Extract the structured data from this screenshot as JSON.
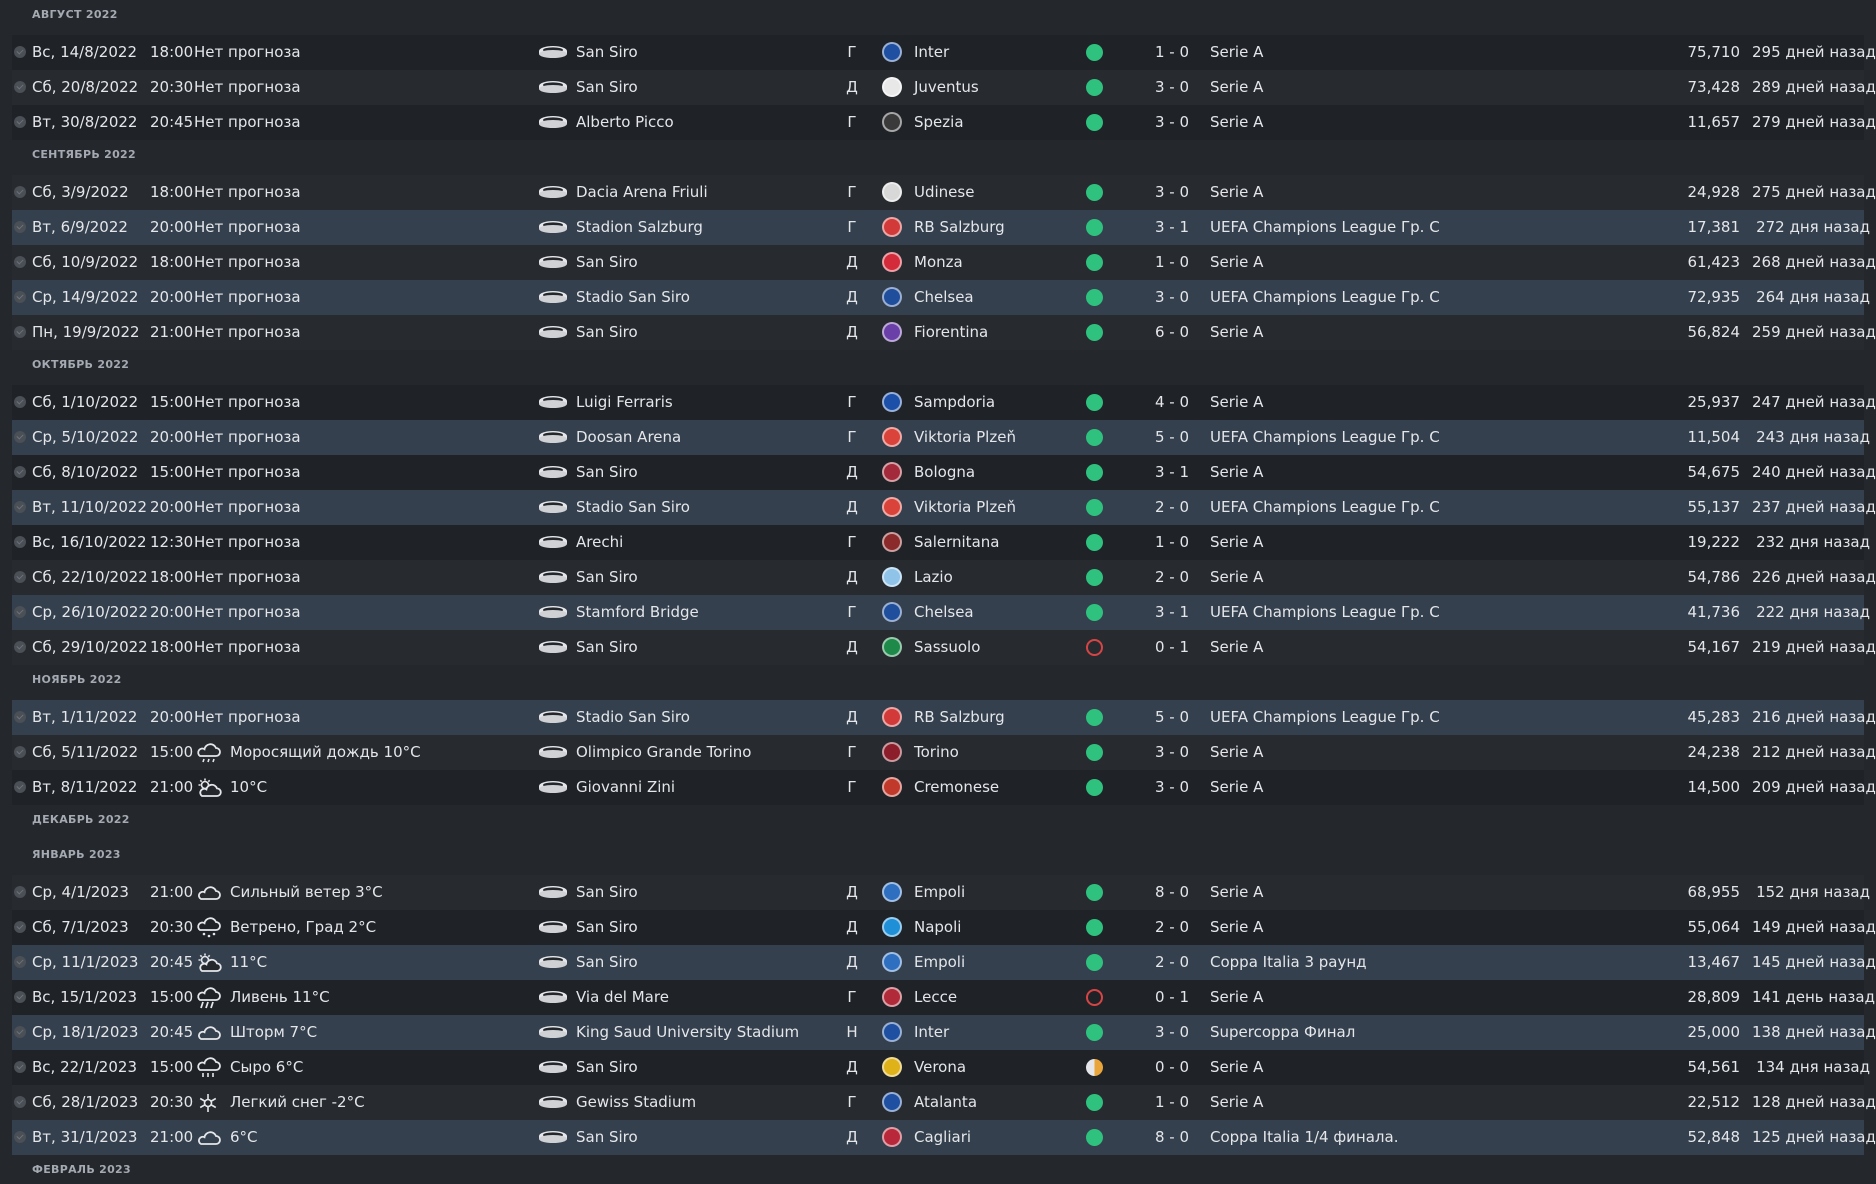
{
  "colors": {
    "win": "#2ec27e",
    "loss": "#d64545",
    "draw": "#e9a43a",
    "accent": "#34404d"
  },
  "months": [
    {
      "label": "АВГУСТ 2022",
      "matches": [
        {
          "date": "Вс, 14/8/2022",
          "time": "18:00",
          "weather_icon": "",
          "forecast": "Нет прогноза",
          "stadium": "San Siro",
          "venue": "Г",
          "team": "Inter",
          "crest_color": "#1e4fa0",
          "result": "win",
          "score": "1 - 0",
          "competition": "Serie A",
          "attendance": "75,710",
          "ago": "295 дней назад",
          "euro": false
        },
        {
          "date": "Сб, 20/8/2022",
          "time": "20:30",
          "weather_icon": "",
          "forecast": "Нет прогноза",
          "stadium": "San Siro",
          "venue": "Д",
          "team": "Juventus",
          "crest_color": "#e8e8e8",
          "result": "win",
          "score": "3 - 0",
          "competition": "Serie A",
          "attendance": "73,428",
          "ago": "289 дней назад",
          "euro": false
        },
        {
          "date": "Вт, 30/8/2022",
          "time": "20:45",
          "weather_icon": "",
          "forecast": "Нет прогноза",
          "stadium": "Alberto Picco",
          "venue": "Г",
          "team": "Spezia",
          "crest_color": "#3a3a3a",
          "result": "win",
          "score": "3 - 0",
          "competition": "Serie A",
          "attendance": "11,657",
          "ago": "279 дней назад",
          "euro": false
        }
      ]
    },
    {
      "label": "СЕНТЯБРЬ 2022",
      "matches": [
        {
          "date": "Сб, 3/9/2022",
          "time": "18:00",
          "weather_icon": "",
          "forecast": "Нет прогноза",
          "stadium": "Dacia Arena Friuli",
          "venue": "Г",
          "team": "Udinese",
          "crest_color": "#d8d8d8",
          "result": "win",
          "score": "3 - 0",
          "competition": "Serie A",
          "attendance": "24,928",
          "ago": "275 дней назад",
          "euro": false
        },
        {
          "date": "Вт, 6/9/2022",
          "time": "20:00",
          "weather_icon": "",
          "forecast": "Нет прогноза",
          "stadium": "Stadion Salzburg",
          "venue": "Г",
          "team": "RB Salzburg",
          "crest_color": "#d23a3a",
          "result": "win",
          "score": "3 - 1",
          "competition": "UEFA Champions League Гр. C",
          "attendance": "17,381",
          "ago": "272 дня назад",
          "euro": true
        },
        {
          "date": "Сб, 10/9/2022",
          "time": "18:00",
          "weather_icon": "",
          "forecast": "Нет прогноза",
          "stadium": "San Siro",
          "venue": "Д",
          "team": "Monza",
          "crest_color": "#d42b3a",
          "result": "win",
          "score": "1 - 0",
          "competition": "Serie A",
          "attendance": "61,423",
          "ago": "268 дней назад",
          "euro": false
        },
        {
          "date": "Ср, 14/9/2022",
          "time": "20:00",
          "weather_icon": "",
          "forecast": "Нет прогноза",
          "stadium": "Stadio San Siro",
          "venue": "Д",
          "team": "Chelsea",
          "crest_color": "#1f4e9c",
          "result": "win",
          "score": "3 - 0",
          "competition": "UEFA Champions League Гр. C",
          "attendance": "72,935",
          "ago": "264 дня назад",
          "euro": true
        },
        {
          "date": "Пн, 19/9/2022",
          "time": "21:00",
          "weather_icon": "",
          "forecast": "Нет прогноза",
          "stadium": "San Siro",
          "venue": "Д",
          "team": "Fiorentina",
          "crest_color": "#6b3fa8",
          "result": "win",
          "score": "6 - 0",
          "competition": "Serie A",
          "attendance": "56,824",
          "ago": "259 дней назад",
          "euro": false
        }
      ]
    },
    {
      "label": "ОКТЯБРЬ 2022",
      "matches": [
        {
          "date": "Сб, 1/10/2022",
          "time": "15:00",
          "weather_icon": "",
          "forecast": "Нет прогноза",
          "stadium": "Luigi Ferraris",
          "venue": "Г",
          "team": "Sampdoria",
          "crest_color": "#1b4fa8",
          "result": "win",
          "score": "4 - 0",
          "competition": "Serie A",
          "attendance": "25,937",
          "ago": "247 дней назад",
          "euro": false
        },
        {
          "date": "Ср, 5/10/2022",
          "time": "20:00",
          "weather_icon": "",
          "forecast": "Нет прогноза",
          "stadium": "Doosan Arena",
          "venue": "Г",
          "team": "Viktoria Plzeň",
          "crest_color": "#d9433a",
          "result": "win",
          "score": "5 - 0",
          "competition": "UEFA Champions League Гр. C",
          "attendance": "11,504",
          "ago": "243 дня назад",
          "euro": true
        },
        {
          "date": "Сб, 8/10/2022",
          "time": "15:00",
          "weather_icon": "",
          "forecast": "Нет прогноза",
          "stadium": "San Siro",
          "venue": "Д",
          "team": "Bologna",
          "crest_color": "#a32a3a",
          "result": "win",
          "score": "3 - 1",
          "competition": "Serie A",
          "attendance": "54,675",
          "ago": "240 дней назад",
          "euro": false
        },
        {
          "date": "Вт, 11/10/2022",
          "time": "20:00",
          "weather_icon": "",
          "forecast": "Нет прогноза",
          "stadium": "Stadio San Siro",
          "venue": "Д",
          "team": "Viktoria Plzeň",
          "crest_color": "#d9433a",
          "result": "win",
          "score": "2 - 0",
          "competition": "UEFA Champions League Гр. C",
          "attendance": "55,137",
          "ago": "237 дней назад",
          "euro": true
        },
        {
          "date": "Вс, 16/10/2022",
          "time": "12:30",
          "weather_icon": "",
          "forecast": "Нет прогноза",
          "stadium": "Arechi",
          "venue": "Г",
          "team": "Salernitana",
          "crest_color": "#8b2a2a",
          "result": "win",
          "score": "1 - 0",
          "competition": "Serie A",
          "attendance": "19,222",
          "ago": "232 дня назад",
          "euro": false
        },
        {
          "date": "Сб, 22/10/2022",
          "time": "18:00",
          "weather_icon": "",
          "forecast": "Нет прогноза",
          "stadium": "San Siro",
          "venue": "Д",
          "team": "Lazio",
          "crest_color": "#8fc3e8",
          "result": "win",
          "score": "2 - 0",
          "competition": "Serie A",
          "attendance": "54,786",
          "ago": "226 дней назад",
          "euro": false
        },
        {
          "date": "Ср, 26/10/2022",
          "time": "20:00",
          "weather_icon": "",
          "forecast": "Нет прогноза",
          "stadium": "Stamford Bridge",
          "venue": "Г",
          "team": "Chelsea",
          "crest_color": "#1f4e9c",
          "result": "win",
          "score": "3 - 1",
          "competition": "UEFA Champions League Гр. C",
          "attendance": "41,736",
          "ago": "222 дня назад",
          "euro": true
        },
        {
          "date": "Сб, 29/10/2022",
          "time": "18:00",
          "weather_icon": "",
          "forecast": "Нет прогноза",
          "stadium": "San Siro",
          "venue": "Д",
          "team": "Sassuolo",
          "crest_color": "#1e8a4a",
          "result": "loss",
          "score": "0 - 1",
          "competition": "Serie A",
          "attendance": "54,167",
          "ago": "219 дней назад",
          "euro": false
        }
      ]
    },
    {
      "label": "НОЯБРЬ 2022",
      "matches": [
        {
          "date": "Вт, 1/11/2022",
          "time": "20:00",
          "weather_icon": "",
          "forecast": "Нет прогноза",
          "stadium": "Stadio San Siro",
          "venue": "Д",
          "team": "RB Salzburg",
          "crest_color": "#d23a3a",
          "result": "win",
          "score": "5 - 0",
          "competition": "UEFA Champions League Гр. C",
          "attendance": "45,283",
          "ago": "216 дней назад",
          "euro": true
        },
        {
          "date": "Сб, 5/11/2022",
          "time": "15:00",
          "weather_icon": "drizzle-icon",
          "forecast": "Моросящий дождь 10°C",
          "stadium": "Olimpico Grande Torino",
          "venue": "Г",
          "team": "Torino",
          "crest_color": "#8b1e2a",
          "result": "win",
          "score": "3 - 0",
          "competition": "Serie A",
          "attendance": "24,238",
          "ago": "212 дней назад",
          "euro": false
        },
        {
          "date": "Вт, 8/11/2022",
          "time": "21:00",
          "weather_icon": "partly-cloudy-icon",
          "forecast": "10°C",
          "stadium": "Giovanni Zini",
          "venue": "Г",
          "team": "Cremonese",
          "crest_color": "#c0392b",
          "result": "win",
          "score": "3 - 0",
          "competition": "Serie A",
          "attendance": "14,500",
          "ago": "209 дней назад",
          "euro": false
        }
      ]
    },
    {
      "label": "ДЕКАБРЬ 2022",
      "matches": []
    },
    {
      "label": "ЯНВАРЬ 2023",
      "matches": [
        {
          "date": "Ср, 4/1/2023",
          "time": "21:00",
          "weather_icon": "cloud-icon",
          "forecast": "Сильный ветер 3°C",
          "stadium": "San Siro",
          "venue": "Д",
          "team": "Empoli",
          "crest_color": "#2f6fc0",
          "result": "win",
          "score": "8 - 0",
          "competition": "Serie A",
          "attendance": "68,955",
          "ago": "152 дня назад",
          "euro": false
        },
        {
          "date": "Сб, 7/1/2023",
          "time": "20:30",
          "weather_icon": "hail-icon",
          "forecast": "Ветрено, Град 2°C",
          "stadium": "San Siro",
          "venue": "Д",
          "team": "Napoli",
          "crest_color": "#1f8fd8",
          "result": "win",
          "score": "2 - 0",
          "competition": "Serie A",
          "attendance": "55,064",
          "ago": "149 дней назад",
          "euro": false
        },
        {
          "date": "Ср, 11/1/2023",
          "time": "20:45",
          "weather_icon": "partly-cloudy-icon",
          "forecast": "11°C",
          "stadium": "San Siro",
          "venue": "Д",
          "team": "Empoli",
          "crest_color": "#2f6fc0",
          "result": "win",
          "score": "2 - 0",
          "competition": "Coppa Italia 3 раунд",
          "attendance": "13,467",
          "ago": "145 дней назад",
          "euro": true
        },
        {
          "date": "Вс, 15/1/2023",
          "time": "15:00",
          "weather_icon": "heavy-rain-icon",
          "forecast": "Ливень 11°C",
          "stadium": "Via del Mare",
          "venue": "Г",
          "team": "Lecce",
          "crest_color": "#b02a3a",
          "result": "loss",
          "score": "0 - 1",
          "competition": "Serie A",
          "attendance": "28,809",
          "ago": "141 день назад",
          "euro": false
        },
        {
          "date": "Ср, 18/1/2023",
          "time": "20:45",
          "weather_icon": "cloud-icon",
          "forecast": "Шторм 7°C",
          "stadium": "King Saud University Stadium",
          "venue": "Н",
          "team": "Inter",
          "crest_color": "#1e4fa0",
          "result": "win",
          "score": "3 - 0",
          "competition": "Supercoppa Финал",
          "attendance": "25,000",
          "ago": "138 дней назад",
          "euro": true
        },
        {
          "date": "Вс, 22/1/2023",
          "time": "15:00",
          "weather_icon": "rain-icon",
          "forecast": "Сыро 6°C",
          "stadium": "San Siro",
          "venue": "Д",
          "team": "Verona",
          "crest_color": "#e0b21a",
          "result": "draw",
          "score": "0 - 0",
          "competition": "Serie A",
          "attendance": "54,561",
          "ago": "134 дня назад",
          "euro": false
        },
        {
          "date": "Сб, 28/1/2023",
          "time": "20:30",
          "weather_icon": "snow-icon",
          "forecast": "Легкий снег -2°C",
          "stadium": "Gewiss Stadium",
          "venue": "Г",
          "team": "Atalanta",
          "crest_color": "#1e4fa0",
          "result": "win",
          "score": "1 - 0",
          "competition": "Serie A",
          "attendance": "22,512",
          "ago": "128 дней назад",
          "euro": false
        },
        {
          "date": "Вт, 31/1/2023",
          "time": "21:00",
          "weather_icon": "cloud-icon",
          "forecast": "6°C",
          "stadium": "San Siro",
          "venue": "Д",
          "team": "Cagliari",
          "crest_color": "#b8283a",
          "result": "win",
          "score": "8 - 0",
          "competition": "Coppa Italia 1/4 финала.",
          "attendance": "52,848",
          "ago": "125 дней назад",
          "euro": true
        }
      ]
    },
    {
      "label": "ФЕВРАЛЬ 2023",
      "matches": []
    }
  ]
}
